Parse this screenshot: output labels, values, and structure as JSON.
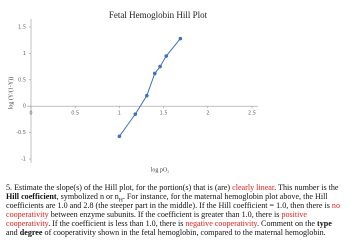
{
  "chart_data": {
    "type": "line",
    "title": "Fetal Hemoglobin Hill Plot",
    "x_label": "log pO₂",
    "y_label": "log (Y/(1-Y))",
    "x": [
      1.0,
      1.18,
      1.31,
      1.4,
      1.46,
      1.53,
      1.69
    ],
    "values": [
      -0.57,
      -0.15,
      0.2,
      0.62,
      0.75,
      0.95,
      1.28
    ],
    "color": "#3d6fc0",
    "xlim": [
      0,
      2.5
    ],
    "xticks": [
      0,
      0.5,
      1,
      1.5,
      2,
      2.5
    ],
    "ylim": [
      -1,
      1.5
    ],
    "yticks": [
      -1,
      -0.5,
      0,
      0.5,
      1,
      1.5
    ]
  },
  "document": {
    "segments": [
      {
        "text": "5. Estimate the slope(s) of the Hill plot, for the portion(s) that is (are) "
      },
      {
        "text": "clearly linear",
        "color": "#e0201b"
      },
      {
        "text": ". This number is the "
      },
      {
        "text": "Hill coefficient",
        "bold": true
      },
      {
        "text": ", symbolized n or n"
      },
      {
        "text": "H",
        "sub": true
      },
      {
        "text": ". For instance, for the maternal hemoglobin plot above, the Hill coefficients are 1.0 and 2.8 (the steeper part in the middle). If the Hill coefficient = 1.0, then there is "
      },
      {
        "text": "no cooperativity",
        "color": "#e0201b"
      },
      {
        "text": " between enzyme subunits. If the coefficient is greater than 1.0, there is "
      },
      {
        "text": "positive cooperativity",
        "color": "#e0201b"
      },
      {
        "text": ". If the coefficient is less than 1.0, there is "
      },
      {
        "text": "negative cooperativity",
        "color": "#e0201b"
      },
      {
        "text": ". Comment on the "
      },
      {
        "text": "type",
        "bold": true
      },
      {
        "text": " and "
      },
      {
        "text": "degree",
        "bold": true
      },
      {
        "text": " of cooperativity shown in the fetal hemoglobin, compared to the maternal hemoglobin."
      }
    ]
  }
}
